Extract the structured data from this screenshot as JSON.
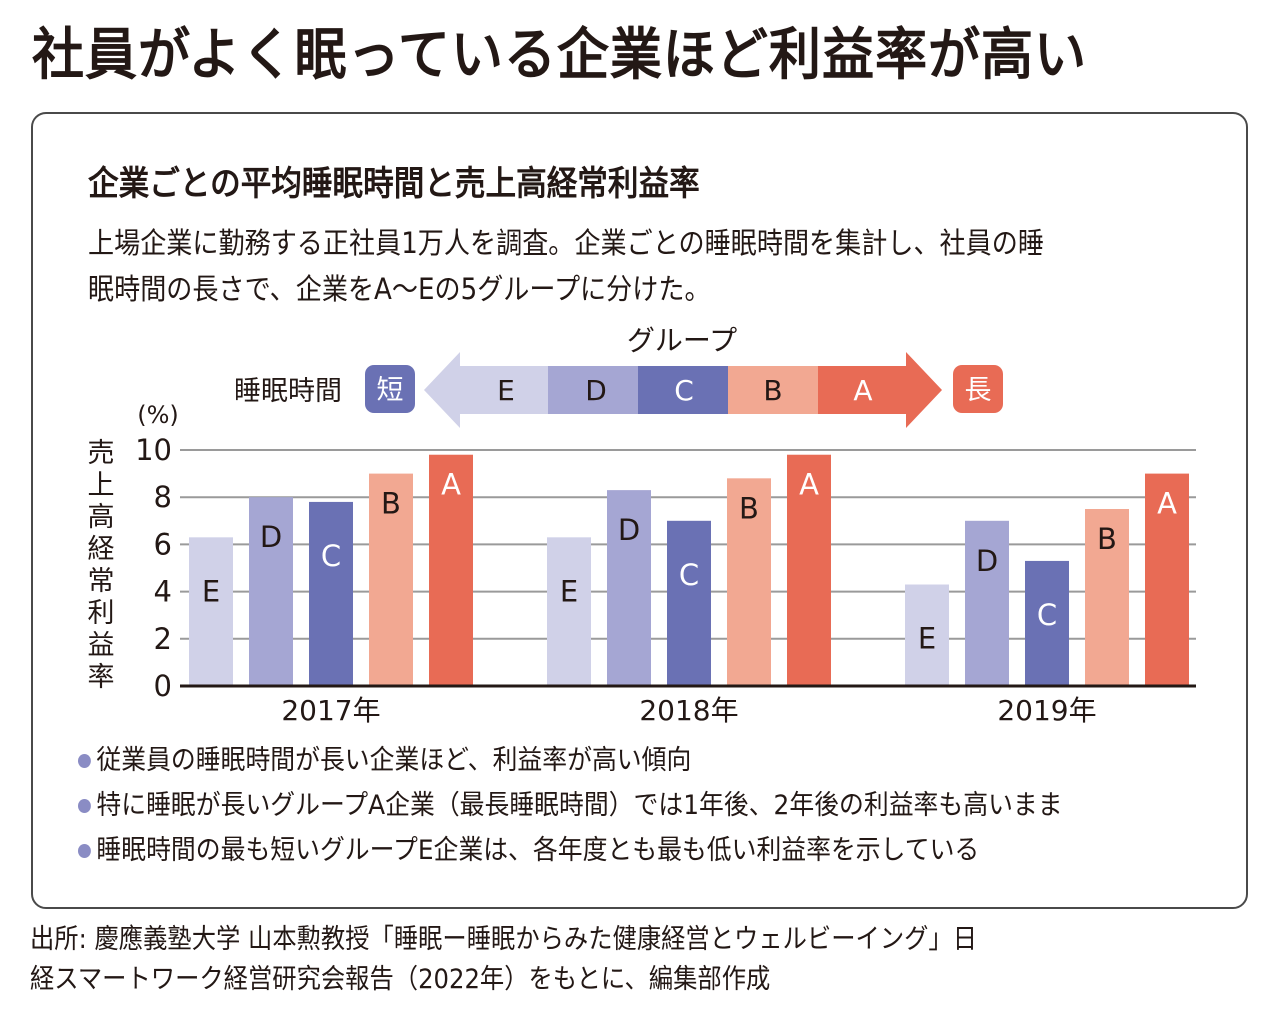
{
  "headline": "社員がよく眠っている企業ほど利益率が高い",
  "subtitle": "企業ごとの平均睡眠時間と売上高経常利益率",
  "description": [
    "上場企業に勤務する正社員1万人を調査。企業ごとの睡眠時間を集計し、社員の睡",
    "眠時間の長さで、企業をA〜Eの5グループに分けた。"
  ],
  "legend": {
    "title": "グループ",
    "axis_label": "睡眠時間",
    "short_label": "短",
    "long_label": "長",
    "groups": [
      {
        "name": "E",
        "color": "#d0d1e8",
        "text_color": "#231815"
      },
      {
        "name": "D",
        "color": "#a5a6d3",
        "text_color": "#231815"
      },
      {
        "name": "C",
        "color": "#6a71b4",
        "text_color": "#ffffff"
      },
      {
        "name": "B",
        "color": "#f2a892",
        "text_color": "#231815"
      },
      {
        "name": "A",
        "color": "#e86b55",
        "text_color": "#ffffff"
      }
    ]
  },
  "chart_data": {
    "type": "bar",
    "title": "企業ごとの平均睡眠時間と売上高経常利益率",
    "xlabel": "",
    "ylabel": "売上高経常利益率",
    "y_unit": "(%)",
    "ylim": [
      0,
      10
    ],
    "yticks": [
      0,
      2,
      4,
      6,
      8,
      10
    ],
    "grid": true,
    "categories": [
      "2017年",
      "2018年",
      "2019年"
    ],
    "series": [
      {
        "name": "E",
        "color": "#d0d1e8",
        "label_color": "#231815",
        "values": [
          6.3,
          6.3,
          4.3
        ]
      },
      {
        "name": "D",
        "color": "#a5a6d3",
        "label_color": "#231815",
        "values": [
          8.0,
          8.3,
          7.0
        ]
      },
      {
        "name": "C",
        "color": "#6a71b4",
        "label_color": "#ffffff",
        "values": [
          7.8,
          7.0,
          5.3
        ]
      },
      {
        "name": "B",
        "color": "#f2a892",
        "label_color": "#231815",
        "values": [
          9.0,
          8.8,
          7.5
        ]
      },
      {
        "name": "A",
        "color": "#e86b55",
        "label_color": "#ffffff",
        "values": [
          9.8,
          9.8,
          9.0
        ]
      }
    ]
  },
  "bullets": {
    "dot_color": "#8a8cc4",
    "items": [
      "従業員の睡眠時間が長い企業ほど、利益率が高い傾向",
      "特に睡眠が長いグループA企業（最長睡眠時間）では1年後、2年後の利益率も高いまま",
      "睡眠時間の最も短いグループE企業は、各年度とも最も低い利益率を示している"
    ]
  },
  "source": [
    "出所: 慶應義塾大学 山本勲教授「睡眠ー睡眠からみた健康経営とウェルビーイング」日",
    "経スマートワーク経営研究会報告（2022年）をもとに、編集部作成"
  ]
}
